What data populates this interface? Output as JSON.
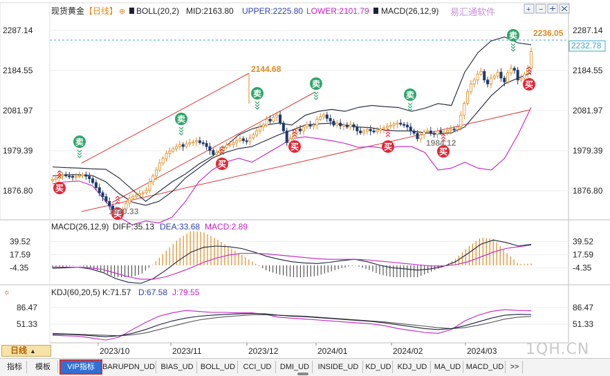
{
  "header": {
    "symbol": "现货黄金",
    "period": "【日线】",
    "boll": "BOLL(20,2)",
    "mid": "MID:2163.80",
    "upper": "UPPER:2225.80",
    "lower": "LOWER:2101.79",
    "macd": "MACD(26,12,9)",
    "brand": "易汇通软件"
  },
  "macd_header": {
    "name": "MACD(26,12,9)",
    "diff": "DIFF:35.13",
    "dea": "DEA:33.68",
    "macd": "MACD:2.89"
  },
  "kdj_header": {
    "name": "KDJ(60,20,5)",
    "k": "K:71.57",
    "d": "D:67.58",
    "j": "J:79.55"
  },
  "price_labels": {
    "high": "2236.05",
    "current": "2232.78",
    "peak_dec": "2144.68",
    "low_oct": "1810.33",
    "low_feb": "1984.12"
  },
  "signals": {
    "buy": "买",
    "sell": "卖"
  },
  "bottom": {
    "day_button": "日线",
    "day_arrow": "▲",
    "watermark": "1QH.CN",
    "tabs": [
      "指标",
      "模板",
      "VIP指标",
      "BARUPDN_UD",
      "BIAS_UD",
      "BOLL_UD",
      "CCI_UD",
      "DMI_UD",
      "INSIDE_UD",
      "KD_UD",
      "KDJ_UD",
      "MA_UD",
      "MACD_UD",
      ">>"
    ]
  },
  "toolbar_icons": [
    "zoom-in-icon",
    "zoom-out-icon",
    "grid-icon",
    "restore-icon",
    "close-icon"
  ],
  "colors": {
    "up": "#e08a1e",
    "down": "#1e3a6e",
    "boll": "#1a2238",
    "lower": "#c51fc6",
    "trend": "#d83a3a",
    "buy": "#e32636",
    "sell": "#2ea66a",
    "kdj_k": "#1a2238",
    "kdj_j": "#c51fc6",
    "kdj_d": "#555555"
  },
  "chart_data": [
    {
      "type": "candlestick",
      "panel": "price",
      "x_ticks": [
        "2023/10",
        "2023/11",
        "2023/12",
        "2024/01",
        "2024/02",
        "2024/03"
      ],
      "y_ticks": [
        2287.14,
        2184.55,
        2081.97,
        1979.39,
        1876.8
      ],
      "ylim": [
        1810,
        2315
      ],
      "close": [
        1906,
        1910,
        1916,
        1918,
        1915,
        1914,
        1912,
        1914,
        1916,
        1918,
        1914,
        1908,
        1898,
        1885,
        1872,
        1862,
        1850,
        1838,
        1828,
        1822,
        1820,
        1830,
        1845,
        1858,
        1862,
        1866,
        1870,
        1872,
        1878,
        1900,
        1915,
        1930,
        1948,
        1960,
        1972,
        1978,
        1984,
        1990,
        1995,
        1990,
        1997,
        2000,
        2002,
        2005,
        2000,
        1998,
        1990,
        1980,
        1970,
        1975,
        1980,
        1988,
        1994,
        1995,
        2000,
        2005,
        2010,
        2005,
        2004,
        2012,
        2020,
        2030,
        2040,
        2045,
        2060,
        2055,
        2065,
        2071,
        2050,
        2030,
        2000,
        2010,
        2025,
        2035,
        2030,
        2040,
        2046,
        2042,
        2045,
        2060,
        2066,
        2071,
        2062,
        2055,
        2045,
        2050,
        2043,
        2045,
        2040,
        2046,
        2040,
        2030,
        2025,
        2030,
        2034,
        2030,
        2028,
        2032,
        2035,
        2038,
        2042,
        2044,
        2048,
        2050,
        2047,
        2045,
        2040,
        2030,
        2024,
        2010,
        2020,
        2028,
        2030,
        2024,
        2022,
        2030,
        2025,
        2027,
        2032,
        2035,
        2034,
        2040,
        2070,
        2100,
        2130,
        2150,
        2160,
        2175,
        2182,
        2160,
        2150,
        2165,
        2170,
        2180,
        2165,
        2155,
        2178,
        2190,
        2185,
        2160,
        2165,
        2175,
        2190,
        2232.78
      ],
      "high": 2236.05,
      "low_points": [
        1810.33,
        1984.12
      ],
      "boll_upper_approx": [
        1938,
        1936,
        1935,
        1933,
        1932,
        1910,
        1880,
        1850,
        1875,
        1900,
        1920,
        1945,
        1965,
        1990,
        2020,
        2035,
        2045,
        2050,
        2045,
        2070,
        2080,
        2085,
        2080,
        2090,
        2095,
        2092,
        2090,
        2080,
        2088,
        2100,
        2095,
        2180,
        2230,
        2260,
        2270,
        2255,
        2250
      ],
      "boll_mid_approx": [
        1915,
        1918,
        1918,
        1916,
        1900,
        1870,
        1848,
        1840,
        1850,
        1875,
        1910,
        1935,
        1960,
        1975,
        1985,
        1990,
        2005,
        2020,
        2032,
        2045,
        2048,
        2050,
        2045,
        2040,
        2038,
        2032,
        2030,
        2030,
        2025,
        2022,
        2025,
        2040,
        2080,
        2120,
        2150,
        2165,
        2178
      ],
      "boll_lower_approx": [
        1895,
        1900,
        1902,
        1890,
        1850,
        1810,
        1790,
        1800,
        1795,
        1810,
        1850,
        1900,
        1930,
        1950,
        1960,
        1950,
        1970,
        1990,
        2010,
        2015,
        2010,
        2005,
        1998,
        1988,
        1990,
        1985,
        1990,
        1990,
        1975,
        1930,
        1935,
        1950,
        1935,
        1930,
        1960,
        2020,
        2090
      ],
      "trend_channel_upper": [
        [
          1830,
          1890
        ],
        [
          2144.68,
          2065
        ]
      ],
      "trend_support": [
        [
          1830,
          2085
        ]
      ],
      "buy_signals": 7,
      "sell_signals": 5
    },
    {
      "type": "bar",
      "panel": "MACD",
      "y_ticks": [
        39.52,
        17.59,
        -4.35
      ],
      "ylim": [
        -30,
        55
      ],
      "diff_approx": [
        -5,
        -4,
        -3,
        -6,
        -12,
        -22,
        -28,
        -30,
        -22,
        -8,
        8,
        22,
        30,
        32,
        31,
        28,
        22,
        15,
        10,
        6,
        4,
        3,
        5,
        8,
        10,
        6,
        0,
        -4,
        -6,
        -8,
        -6,
        -2,
        6,
        20,
        35,
        42,
        38,
        32,
        35
      ],
      "dea_approx": [
        -3,
        -3,
        -3,
        -4,
        -7,
        -13,
        -19,
        -23,
        -23,
        -19,
        -12,
        -4,
        5,
        12,
        17,
        20,
        20,
        19,
        17,
        15,
        13,
        11,
        10,
        10,
        10,
        9,
        7,
        5,
        3,
        1,
        -1,
        -1,
        1,
        6,
        14,
        22,
        28,
        31,
        33.68
      ],
      "macd_hist": 2.89
    },
    {
      "type": "line",
      "panel": "KDJ",
      "y_ticks": [
        86.47,
        51.33
      ],
      "ylim": [
        18,
        105
      ],
      "k_approx": [
        30,
        30,
        29,
        27,
        25,
        27,
        32,
        40,
        50,
        58,
        64,
        68,
        70,
        72,
        73,
        74,
        73,
        70,
        68,
        67,
        65,
        63,
        61,
        59,
        57,
        54,
        50,
        46,
        42,
        40,
        42,
        48,
        56,
        64,
        70,
        72,
        71.57
      ],
      "d_approx": [
        32,
        31,
        30,
        29,
        28,
        27,
        29,
        33,
        40,
        47,
        54,
        60,
        64,
        67,
        69,
        71,
        71,
        70,
        69,
        68,
        66,
        64,
        62,
        60,
        58,
        56,
        53,
        50,
        47,
        44,
        42,
        44,
        49,
        55,
        62,
        66,
        67.58
      ],
      "j_approx": [
        28,
        27,
        26,
        22,
        18,
        24,
        40,
        55,
        68,
        75,
        80,
        78,
        76,
        76,
        75,
        75,
        72,
        66,
        64,
        62,
        60,
        58,
        56,
        54,
        52,
        48,
        42,
        38,
        34,
        32,
        40,
        58,
        70,
        78,
        82,
        80,
        79.55
      ]
    }
  ]
}
